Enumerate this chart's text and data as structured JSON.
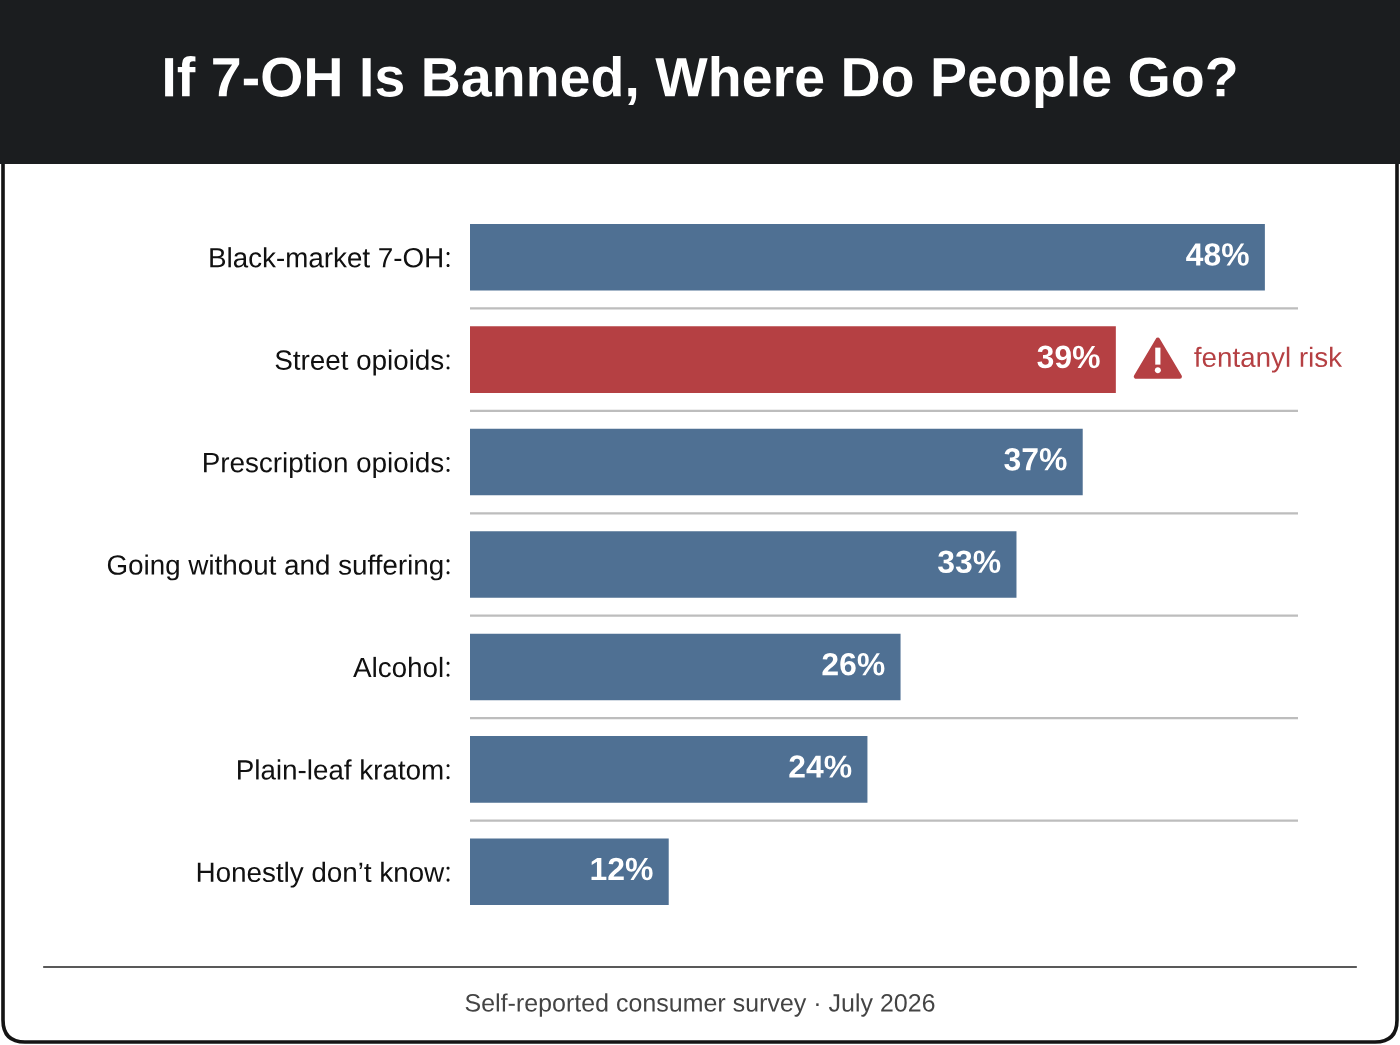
{
  "chart_data": {
    "type": "bar",
    "orientation": "horizontal",
    "title": "If 7-OH Is Banned, Where Do People Go?",
    "categories": [
      "Black-market 7-OH",
      "Street opioids",
      "Prescription opioids",
      "Going without and suffering",
      "Alcohol",
      "Plain-leaf kratom",
      "Honestly don’t know"
    ],
    "values": [
      48,
      39,
      37,
      33,
      26,
      24,
      12
    ],
    "colors": [
      "#4f7093",
      "#b54043",
      "#4f7093",
      "#4f7093",
      "#4f7093",
      "#4f7093",
      "#4f7093"
    ],
    "value_labels": [
      "48%",
      "39%",
      "37%",
      "33%",
      "26%",
      "24%",
      "12%"
    ],
    "xlim": [
      0,
      50
    ],
    "tick_labels": "y",
    "grid": "y",
    "annotations": [
      {
        "text": "fentanyl risk",
        "x": 39,
        "y": "Street opioids"
      },
      "Self-reported consumer survey · July 2026"
    ]
  }
}
